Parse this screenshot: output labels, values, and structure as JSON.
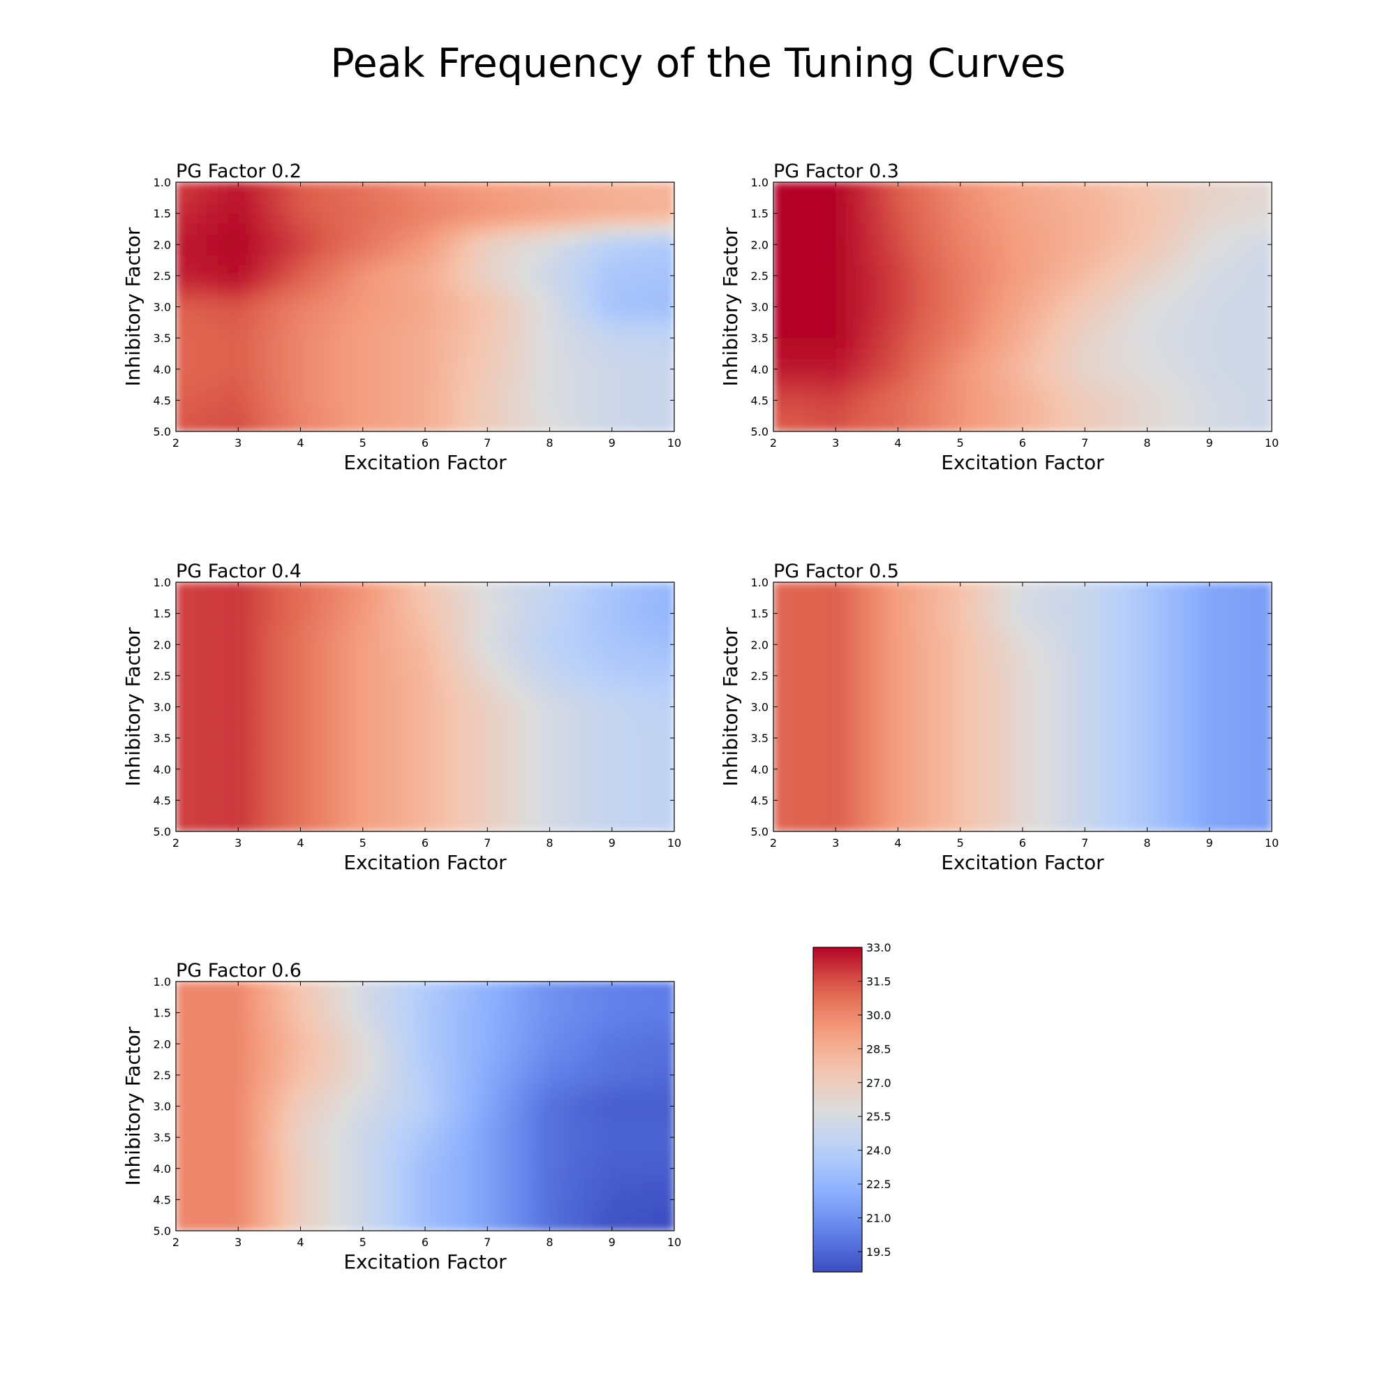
{
  "figure": {
    "title": "Peak Frequency of the Tuning Curves"
  },
  "colorbar": {
    "vmin": 18.6,
    "vmax": 33.0,
    "ticks": [
      "33.0",
      "31.5",
      "30.0",
      "28.5",
      "27.0",
      "25.5",
      "24.0",
      "22.5",
      "21.0",
      "19.5"
    ],
    "colormap": "coolwarm"
  },
  "chart_data": [
    {
      "type": "heatmap",
      "title": "PG Factor 0.2",
      "xlabel": "Excitation Factor",
      "ylabel": "Inhibitory Factor",
      "xlim": [
        2,
        10
      ],
      "ylim": [
        5.0,
        1.0
      ],
      "x_ticks": [
        "2",
        "3",
        "4",
        "5",
        "6",
        "7",
        "8",
        "9",
        "10"
      ],
      "y_ticks": [
        "1.0",
        "1.5",
        "2.0",
        "2.5",
        "3.0",
        "3.5",
        "4.0",
        "4.5",
        "5.0"
      ],
      "x": [
        2,
        3,
        4,
        5,
        6,
        7,
        8,
        9,
        10
      ],
      "y": [
        1.0,
        1.5,
        2.0,
        2.5,
        3.0,
        3.5,
        4.0,
        4.5,
        5.0
      ],
      "z": [
        [
          31.8,
          32.6,
          31.2,
          30.6,
          29.8,
          29.2,
          28.8,
          28.4,
          28.2
        ],
        [
          32.2,
          32.8,
          31.4,
          30.8,
          30.2,
          29.6,
          29.0,
          28.6,
          28.4
        ],
        [
          32.6,
          33.0,
          31.8,
          30.6,
          29.4,
          26.8,
          25.6,
          24.0,
          23.6
        ],
        [
          32.4,
          32.8,
          31.2,
          29.6,
          28.6,
          26.6,
          25.0,
          23.4,
          23.2
        ],
        [
          31.2,
          31.4,
          30.2,
          29.4,
          28.8,
          27.6,
          25.6,
          23.2,
          23.0
        ],
        [
          31.0,
          31.2,
          30.0,
          29.2,
          28.6,
          27.4,
          25.6,
          24.6,
          24.4
        ],
        [
          31.0,
          31.2,
          30.0,
          29.2,
          28.6,
          27.2,
          25.6,
          25.0,
          24.8
        ],
        [
          31.2,
          31.4,
          30.0,
          29.2,
          28.6,
          27.0,
          25.6,
          25.0,
          24.8
        ],
        [
          31.4,
          31.6,
          30.2,
          29.2,
          28.6,
          27.0,
          25.8,
          25.0,
          24.8
        ]
      ]
    },
    {
      "type": "heatmap",
      "title": "PG Factor 0.3",
      "xlabel": "Excitation Factor",
      "ylabel": "Inhibitory Factor",
      "xlim": [
        2,
        10
      ],
      "ylim": [
        5.0,
        1.0
      ],
      "x_ticks": [
        "2",
        "3",
        "4",
        "5",
        "6",
        "7",
        "8",
        "9",
        "10"
      ],
      "y_ticks": [
        "1.0",
        "1.5",
        "2.0",
        "2.5",
        "3.0",
        "3.5",
        "4.0",
        "4.5",
        "5.0"
      ],
      "x": [
        2,
        3,
        4,
        5,
        6,
        7,
        8,
        9,
        10
      ],
      "y": [
        1.0,
        1.5,
        2.0,
        2.5,
        3.0,
        3.5,
        4.0,
        4.5,
        5.0
      ],
      "z": [
        [
          33.0,
          33.0,
          31.2,
          29.8,
          28.8,
          28.2,
          27.4,
          26.6,
          26.2
        ],
        [
          33.0,
          33.0,
          31.4,
          30.0,
          29.0,
          28.4,
          27.6,
          26.4,
          26.0
        ],
        [
          33.0,
          33.0,
          31.6,
          30.2,
          29.2,
          28.4,
          27.4,
          25.8,
          25.2
        ],
        [
          33.0,
          33.0,
          31.8,
          30.4,
          29.2,
          28.0,
          26.6,
          25.4,
          25.0
        ],
        [
          33.0,
          33.0,
          31.8,
          30.4,
          28.8,
          27.2,
          25.8,
          25.2,
          25.0
        ],
        [
          33.0,
          33.0,
          31.6,
          30.2,
          28.4,
          26.6,
          25.6,
          25.2,
          25.0
        ],
        [
          32.6,
          32.6,
          31.4,
          29.6,
          28.0,
          26.4,
          25.8,
          25.2,
          25.0
        ],
        [
          31.6,
          31.8,
          30.8,
          29.6,
          28.4,
          27.0,
          26.2,
          25.4,
          25.0
        ],
        [
          31.2,
          31.4,
          30.8,
          29.6,
          28.4,
          27.2,
          26.2,
          25.4,
          25.0
        ]
      ]
    },
    {
      "type": "heatmap",
      "title": "PG Factor 0.4",
      "xlabel": "Excitation Factor",
      "ylabel": "Inhibitory Factor",
      "xlim": [
        2,
        10
      ],
      "ylim": [
        5.0,
        1.0
      ],
      "x_ticks": [
        "2",
        "3",
        "4",
        "5",
        "6",
        "7",
        "8",
        "9",
        "10"
      ],
      "y_ticks": [
        "1.0",
        "1.5",
        "2.0",
        "2.5",
        "3.0",
        "3.5",
        "4.0",
        "4.5",
        "5.0"
      ],
      "x": [
        2,
        3,
        4,
        5,
        6,
        7,
        8,
        9,
        10
      ],
      "y": [
        1.0,
        1.5,
        2.0,
        2.5,
        3.0,
        3.5,
        4.0,
        4.5,
        5.0
      ],
      "z": [
        [
          31.8,
          32.0,
          30.8,
          29.6,
          27.4,
          25.6,
          24.6,
          23.4,
          22.6
        ],
        [
          31.8,
          32.0,
          30.8,
          29.4,
          27.6,
          25.8,
          24.4,
          23.2,
          22.4
        ],
        [
          31.8,
          32.0,
          30.6,
          29.2,
          28.0,
          25.6,
          24.2,
          23.4,
          23.0
        ],
        [
          31.8,
          32.0,
          30.6,
          29.2,
          28.2,
          26.2,
          24.6,
          23.8,
          23.6
        ],
        [
          31.8,
          32.0,
          30.6,
          29.2,
          28.2,
          26.8,
          25.4,
          24.6,
          24.2
        ],
        [
          31.8,
          32.0,
          30.6,
          29.2,
          28.2,
          26.8,
          25.4,
          24.6,
          24.4
        ],
        [
          31.8,
          32.0,
          30.6,
          29.2,
          28.2,
          26.8,
          25.4,
          24.6,
          24.4
        ],
        [
          31.8,
          32.0,
          30.6,
          29.2,
          28.2,
          26.8,
          25.4,
          24.6,
          24.4
        ],
        [
          31.8,
          32.0,
          30.6,
          29.2,
          28.2,
          26.8,
          25.4,
          24.6,
          24.4
        ]
      ]
    },
    {
      "type": "heatmap",
      "title": "PG Factor 0.5",
      "xlabel": "Excitation Factor",
      "ylabel": "Inhibitory Factor",
      "xlim": [
        2,
        10
      ],
      "ylim": [
        5.0,
        1.0
      ],
      "x_ticks": [
        "2",
        "3",
        "4",
        "5",
        "6",
        "7",
        "8",
        "9",
        "10"
      ],
      "y_ticks": [
        "1.0",
        "1.5",
        "2.0",
        "2.5",
        "3.0",
        "3.5",
        "4.0",
        "4.5",
        "5.0"
      ],
      "x": [
        2,
        3,
        4,
        5,
        6,
        7,
        8,
        9,
        10
      ],
      "y": [
        1.0,
        1.5,
        2.0,
        2.5,
        3.0,
        3.5,
        4.0,
        4.5,
        5.0
      ],
      "z": [
        [
          31.0,
          31.2,
          29.2,
          27.8,
          25.6,
          24.8,
          23.4,
          21.8,
          21.4
        ],
        [
          31.0,
          31.2,
          29.2,
          27.6,
          25.4,
          24.8,
          23.4,
          21.8,
          21.4
        ],
        [
          31.0,
          31.2,
          29.2,
          27.8,
          26.0,
          24.8,
          23.4,
          21.8,
          21.4
        ],
        [
          31.0,
          31.2,
          29.2,
          27.8,
          26.2,
          24.8,
          23.4,
          21.8,
          21.4
        ],
        [
          31.0,
          31.2,
          29.2,
          27.8,
          26.2,
          24.8,
          23.4,
          21.8,
          21.4
        ],
        [
          31.0,
          31.2,
          29.2,
          27.8,
          26.2,
          24.8,
          23.4,
          21.8,
          21.4
        ],
        [
          31.0,
          31.2,
          29.2,
          27.8,
          26.2,
          24.8,
          23.4,
          21.8,
          21.4
        ],
        [
          31.0,
          31.2,
          29.2,
          27.8,
          26.2,
          24.8,
          23.4,
          21.8,
          21.4
        ],
        [
          31.0,
          31.2,
          29.2,
          27.8,
          26.2,
          24.8,
          23.4,
          21.8,
          21.4
        ]
      ]
    },
    {
      "type": "heatmap",
      "title": "PG Factor 0.6",
      "xlabel": "Excitation Factor",
      "ylabel": "Inhibitory Factor",
      "xlim": [
        2,
        10
      ],
      "ylim": [
        5.0,
        1.0
      ],
      "x_ticks": [
        "2",
        "3",
        "4",
        "5",
        "6",
        "7",
        "8",
        "9",
        "10"
      ],
      "y_ticks": [
        "1.0",
        "1.5",
        "2.0",
        "2.5",
        "3.0",
        "3.5",
        "4.0",
        "4.5",
        "5.0"
      ],
      "x": [
        2,
        3,
        4,
        5,
        6,
        7,
        8,
        9,
        10
      ],
      "y": [
        1.0,
        1.5,
        2.0,
        2.5,
        3.0,
        3.5,
        4.0,
        4.5,
        5.0
      ],
      "z": [
        [
          30.0,
          30.0,
          27.4,
          25.4,
          23.8,
          22.4,
          21.0,
          20.4,
          20.2
        ],
        [
          30.0,
          30.0,
          27.6,
          25.4,
          23.6,
          22.2,
          21.0,
          20.4,
          20.2
        ],
        [
          30.0,
          30.0,
          28.0,
          26.0,
          23.6,
          22.2,
          20.8,
          20.0,
          19.8
        ],
        [
          30.0,
          30.0,
          27.8,
          26.0,
          23.8,
          22.0,
          20.4,
          19.8,
          19.6
        ],
        [
          30.0,
          30.0,
          27.0,
          25.4,
          24.0,
          21.8,
          19.8,
          19.2,
          19.2
        ],
        [
          30.0,
          30.0,
          26.6,
          25.0,
          23.4,
          21.6,
          19.8,
          19.4,
          19.4
        ],
        [
          30.0,
          30.0,
          26.8,
          25.0,
          23.0,
          21.6,
          19.8,
          19.2,
          19.2
        ],
        [
          30.0,
          30.0,
          26.8,
          25.0,
          23.0,
          21.6,
          19.8,
          19.0,
          18.8
        ],
        [
          30.0,
          30.0,
          26.8,
          25.0,
          23.0,
          21.6,
          19.8,
          18.8,
          18.6
        ]
      ]
    }
  ]
}
